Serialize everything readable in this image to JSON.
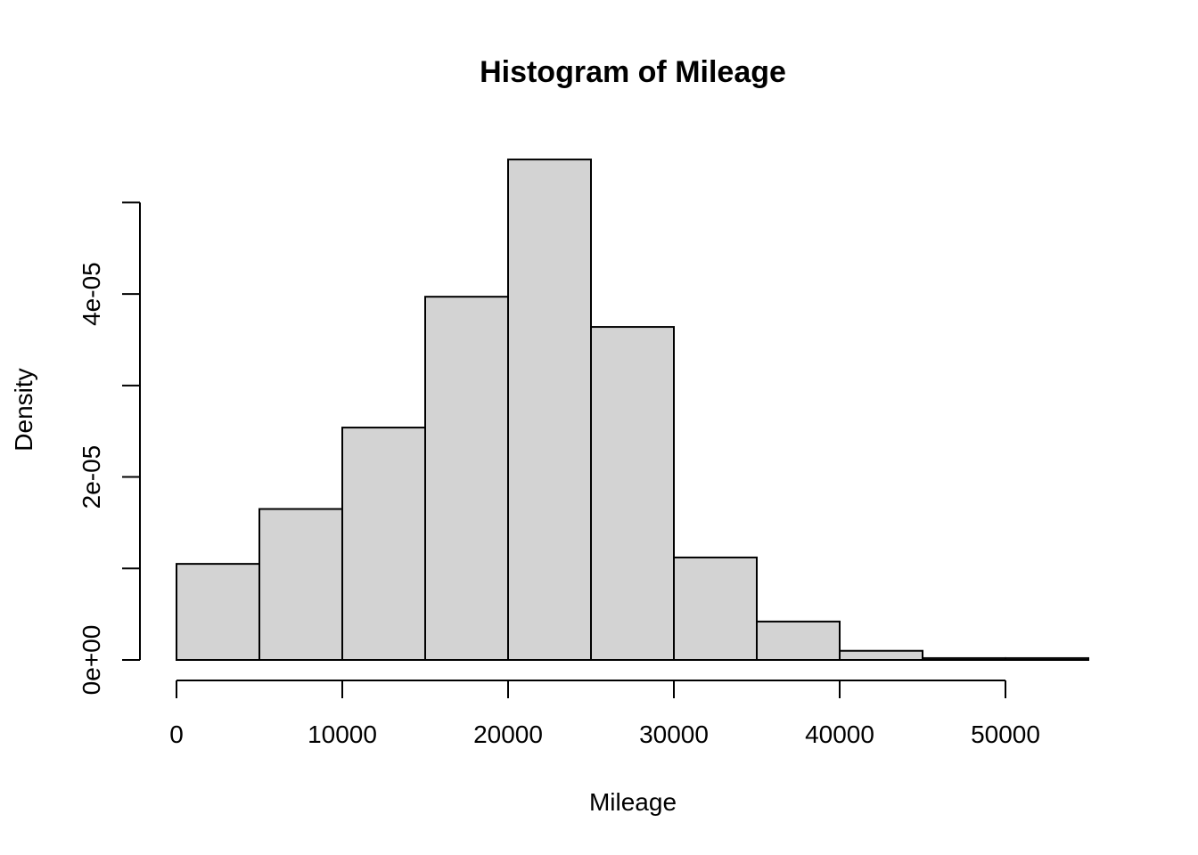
{
  "chart_data": {
    "type": "bar",
    "title": "Histogram of Mileage",
    "xlabel": "Mileage",
    "ylabel": "Density",
    "bin_edges": [
      0,
      5000,
      10000,
      15000,
      20000,
      25000,
      30000,
      35000,
      40000,
      45000,
      50000,
      55000
    ],
    "values": [
      1.05e-05,
      1.65e-05,
      2.54e-05,
      3.97e-05,
      5.47e-05,
      3.64e-05,
      1.12e-05,
      4.2e-06,
      1e-06,
      2e-07,
      2e-07
    ],
    "xlim": [
      0,
      55000
    ],
    "ylim": [
      0,
      5.5e-05
    ],
    "x_ticks": [
      0,
      10000,
      20000,
      30000,
      40000,
      50000
    ],
    "x_tick_labels": [
      "0",
      "10000",
      "20000",
      "30000",
      "40000",
      "50000"
    ],
    "y_ticks": [
      0,
      1e-05,
      2e-05,
      3e-05,
      4e-05,
      5e-05
    ],
    "y_tick_labels": [
      "0e+00",
      "",
      "2e-05",
      "",
      "4e-05",
      ""
    ],
    "colors": {
      "bar_fill": "#d3d3d3",
      "bar_stroke": "#000000"
    }
  }
}
